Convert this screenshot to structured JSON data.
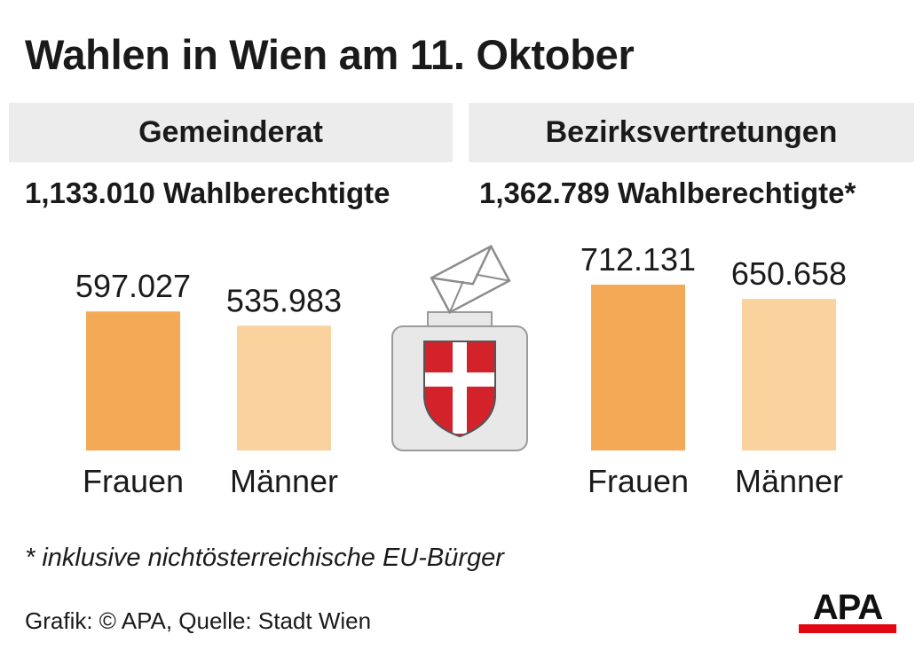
{
  "title": "Wahlen in Wien am 11. Oktober",
  "footnote": "* inklusive nichtösterreichische EU-Bürger",
  "source": "Grafik: © APA, Quelle: Stadt Wien",
  "logo_text": "APA",
  "colors": {
    "frauen": "#f4a957",
    "maenner": "#f9d29d",
    "header_bg": "#ececec",
    "urn_bg": "#e8e8e8",
    "shield_red": "#d3222a",
    "logo_red": "#e30613"
  },
  "icons": [
    "envelope-icon",
    "ballot-box-icon",
    "vienna-coat-of-arms-icon"
  ],
  "chart_data": [
    {
      "type": "bar",
      "title": "Gemeinderat",
      "subtitle": "1,133.010 Wahlberechtigte",
      "categories": [
        "Frauen",
        "Männer"
      ],
      "values": [
        597027,
        535983
      ],
      "value_labels": [
        "597.027",
        "535.983"
      ],
      "colors": [
        "#f4a957",
        "#f9d29d"
      ],
      "xlabel": "",
      "ylabel": "",
      "grid": false
    },
    {
      "type": "bar",
      "title": "Bezirksvertretungen",
      "subtitle": "1,362.789 Wahlberechtigte*",
      "categories": [
        "Frauen",
        "Männer"
      ],
      "values": [
        712131,
        650658
      ],
      "value_labels": [
        "712.131",
        "650.658"
      ],
      "colors": [
        "#f4a957",
        "#f9d29d"
      ],
      "xlabel": "",
      "ylabel": "",
      "grid": false
    }
  ]
}
